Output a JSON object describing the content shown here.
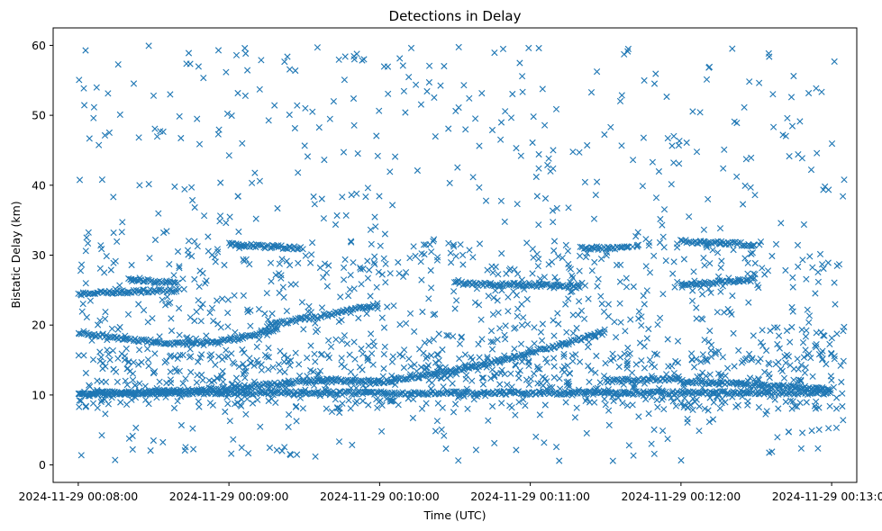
{
  "chart_data": {
    "type": "scatter",
    "title": "Detections in Delay",
    "xlabel": "Time (UTC)",
    "ylabel": "Bistatic Delay (km)",
    "x_range": [
      "2024-11-29 00:07:50",
      "2024-11-29 00:13:10"
    ],
    "ylim": [
      -2.5,
      62.5
    ],
    "x_ticks": [
      "2024-11-29 00:08:00",
      "2024-11-29 00:09:00",
      "2024-11-29 00:10:00",
      "2024-11-29 00:11:00",
      "2024-11-29 00:12:00",
      "2024-11-29 00:13:00"
    ],
    "y_ticks": [
      "0",
      "10",
      "20",
      "30",
      "40",
      "50",
      "60"
    ],
    "marker": "x",
    "color": "#1f77b4",
    "grid": false,
    "series": [
      {
        "tracks": [
          {
            "t": [
              "2024-11-29 00:08:00",
              "2024-11-29 00:08:30",
              "2024-11-29 00:09:00",
              "2024-11-29 00:09:40",
              "2024-11-29 00:10:00",
              "2024-11-29 00:10:30",
              "2024-11-29 00:11:00",
              "2024-11-29 00:11:30"
            ],
            "delay": [
              10.0,
              10.4,
              11.0,
              12.2,
              11.8,
              13.5,
              16.0,
              19.0
            ]
          },
          {
            "t": [
              "2024-11-29 00:08:00",
              "2024-11-29 00:08:20",
              "2024-11-29 00:08:40",
              "2024-11-29 00:09:00",
              "2024-11-29 00:09:20"
            ],
            "delay": [
              19.0,
              18.0,
              17.3,
              17.8,
              19.5
            ]
          },
          {
            "t": [
              "2024-11-29 00:09:15",
              "2024-11-29 00:09:40",
              "2024-11-29 00:10:00"
            ],
            "delay": [
              20.0,
              21.5,
              23.0
            ]
          },
          {
            "t": [
              "2024-11-29 00:08:00",
              "2024-11-29 00:08:40"
            ],
            "delay": [
              24.5,
              25.0
            ]
          },
          {
            "t": [
              "2024-11-29 00:08:20",
              "2024-11-29 00:08:40"
            ],
            "delay": [
              26.5,
              26.0
            ]
          },
          {
            "t": [
              "2024-11-29 00:10:30",
              "2024-11-29 00:11:20"
            ],
            "delay": [
              26.0,
              25.5
            ]
          },
          {
            "t": [
              "2024-11-29 00:12:00",
              "2024-11-29 00:12:30"
            ],
            "delay": [
              25.8,
              26.5
            ]
          },
          {
            "t": [
              "2024-11-29 00:11:30",
              "2024-11-29 00:12:00"
            ],
            "delay": [
              12.0,
              12.3
            ]
          },
          {
            "t": [
              "2024-11-29 00:12:00",
              "2024-11-29 00:13:00"
            ],
            "delay": [
              12.0,
              10.8
            ]
          },
          {
            "t": [
              "2024-11-29 00:08:00",
              "2024-11-29 00:13:00"
            ],
            "delay": [
              10.3,
              10.3
            ]
          },
          {
            "t": [
              "2024-11-29 00:12:00",
              "2024-11-29 00:12:30"
            ],
            "delay": [
              32.0,
              31.5
            ]
          },
          {
            "t": [
              "2024-11-29 00:11:20",
              "2024-11-29 00:11:40"
            ],
            "delay": [
              31.0,
              31.0
            ]
          },
          {
            "t": [
              "2024-11-29 00:09:00",
              "2024-11-29 00:09:30"
            ],
            "delay": [
              31.5,
              31.0
            ]
          }
        ],
        "background_scatter": {
          "t_range": [
            "2024-11-29 00:08:00",
            "2024-11-29 00:13:05"
          ],
          "delay_range": [
            0.5,
            60.0
          ],
          "approx_points": 1700
        }
      }
    ]
  }
}
